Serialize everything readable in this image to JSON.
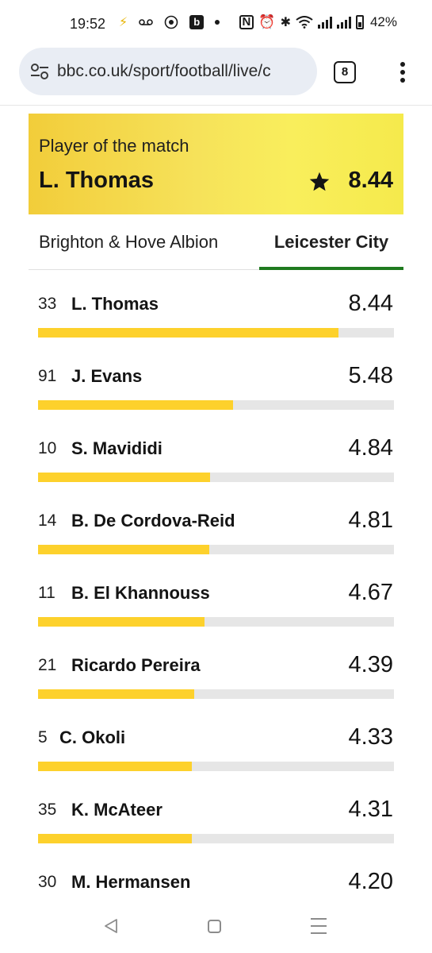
{
  "status_bar": {
    "time": "19:52",
    "battery": "42%",
    "icons_left": [
      "flash-icon",
      "voicemail-icon",
      "target-icon",
      "b-app-icon",
      "dot-icon"
    ],
    "icons_right": [
      "nfc-icon",
      "alarm-icon",
      "bluetooth-icon",
      "wifi-icon",
      "signal-icon",
      "signal-icon",
      "battery-icon"
    ]
  },
  "browser": {
    "url": "bbc.co.uk/sport/football/live/c",
    "tab_count": "8"
  },
  "potm": {
    "label": "Player of the match",
    "name": "L. Thomas",
    "rating": "8.44"
  },
  "teams": [
    {
      "label": "Brighton & Hove Albion",
      "selected": false
    },
    {
      "label": "Leicester City",
      "selected": true
    }
  ],
  "ratings_max": 10,
  "players": [
    {
      "number": "33",
      "name": "L. Thomas",
      "rating": "8.44"
    },
    {
      "number": "91",
      "name": "J. Evans",
      "rating": "5.48"
    },
    {
      "number": "10",
      "name": "S. Mavididi",
      "rating": "4.84"
    },
    {
      "number": "14",
      "name": "B. De Cordova-Reid",
      "rating": "4.81"
    },
    {
      "number": "11",
      "name": "B. El Khannouss",
      "rating": "4.67"
    },
    {
      "number": "21",
      "name": "Ricardo Pereira",
      "rating": "4.39"
    },
    {
      "number": "5",
      "name": "C. Okoli",
      "rating": "4.33"
    },
    {
      "number": "35",
      "name": "K. McAteer",
      "rating": "4.31"
    },
    {
      "number": "30",
      "name": "M. Hermansen",
      "rating": "4.20"
    }
  ],
  "colors": {
    "bar_fill": "#fdd12c",
    "bar_track": "#e6e6e6",
    "tab_underline": "#1f7a1f",
    "potm_background": "#f6e25a"
  }
}
